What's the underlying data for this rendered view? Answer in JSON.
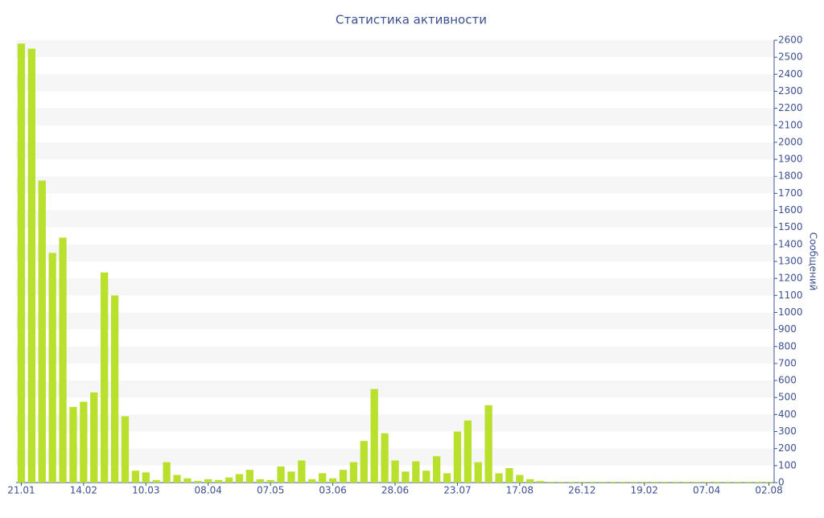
{
  "chart_data": {
    "type": "bar",
    "title": "Статистика активности",
    "y_axis_label": "Сообщений",
    "categories": [
      "21.01",
      null,
      null,
      null,
      null,
      null,
      "14.02",
      null,
      null,
      null,
      null,
      null,
      "10.03",
      null,
      null,
      null,
      null,
      null,
      "08.04",
      null,
      null,
      null,
      null,
      null,
      "07.05",
      null,
      null,
      null,
      null,
      null,
      "03.06",
      null,
      null,
      null,
      null,
      null,
      "28.06",
      null,
      null,
      null,
      null,
      null,
      "23.07",
      null,
      null,
      null,
      null,
      null,
      "17.08",
      null,
      null,
      null,
      null,
      null,
      "26.12",
      null,
      null,
      null,
      null,
      null,
      "19.02",
      null,
      null,
      null,
      null,
      null,
      "07.04",
      null,
      null,
      null,
      null,
      null,
      "02.08"
    ],
    "values": [
      2580,
      2550,
      1775,
      1350,
      1440,
      445,
      475,
      530,
      1235,
      1100,
      390,
      70,
      60,
      15,
      120,
      45,
      25,
      10,
      20,
      15,
      30,
      50,
      75,
      20,
      15,
      95,
      65,
      130,
      20,
      55,
      25,
      75,
      120,
      245,
      550,
      290,
      130,
      65,
      125,
      70,
      155,
      55,
      300,
      365,
      120,
      455,
      55,
      85,
      45,
      20,
      10,
      5,
      5,
      5,
      5,
      5,
      5,
      5,
      5,
      5,
      5,
      5,
      5,
      5,
      5,
      5,
      5,
      5,
      5,
      5,
      5,
      5,
      5
    ],
    "color": "#b9e02c",
    "ylim": [
      0,
      2600
    ],
    "yticks": [
      0,
      100,
      200,
      300,
      400,
      500,
      600,
      700,
      800,
      900,
      1000,
      1100,
      1200,
      1300,
      1400,
      1500,
      1600,
      1700,
      1800,
      1900,
      2000,
      2100,
      2200,
      2300,
      2400,
      2500,
      2600
    ],
    "y_axis_side": "right",
    "grid": true
  }
}
